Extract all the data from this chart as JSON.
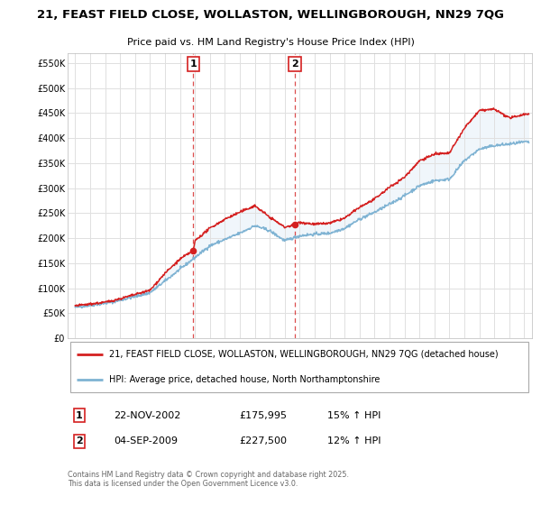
{
  "title_line1": "21, FEAST FIELD CLOSE, WOLLASTON, WELLINGBOROUGH, NN29 7QG",
  "title_line2": "Price paid vs. HM Land Registry's House Price Index (HPI)",
  "ylabel_ticks": [
    "£0",
    "£50K",
    "£100K",
    "£150K",
    "£200K",
    "£250K",
    "£300K",
    "£350K",
    "£400K",
    "£450K",
    "£500K",
    "£550K"
  ],
  "ytick_values": [
    0,
    50000,
    100000,
    150000,
    200000,
    250000,
    300000,
    350000,
    400000,
    450000,
    500000,
    550000
  ],
  "xlim_start": 1994.5,
  "xlim_end": 2025.5,
  "ylim_min": 0,
  "ylim_max": 570000,
  "sale1_year": 2002.9,
  "sale1_price": 175995,
  "sale2_year": 2009.67,
  "sale2_price": 227500,
  "legend_line1": "21, FEAST FIELD CLOSE, WOLLASTON, WELLINGBOROUGH, NN29 7QG (detached house)",
  "legend_line2": "HPI: Average price, detached house, North Northamptonshire",
  "annotation1_label": "1",
  "annotation1_date": "22-NOV-2002",
  "annotation1_price": "£175,995",
  "annotation1_hpi": "15% ↑ HPI",
  "annotation2_label": "2",
  "annotation2_date": "04-SEP-2009",
  "annotation2_price": "£227,500",
  "annotation2_hpi": "12% ↑ HPI",
  "footer": "Contains HM Land Registry data © Crown copyright and database right 2025.\nThis data is licensed under the Open Government Licence v3.0.",
  "line_color_red": "#d42020",
  "line_color_blue": "#7fb3d3",
  "fill_color_blue": "#c5dff0",
  "background_color": "#ffffff",
  "grid_color": "#e0e0e0"
}
